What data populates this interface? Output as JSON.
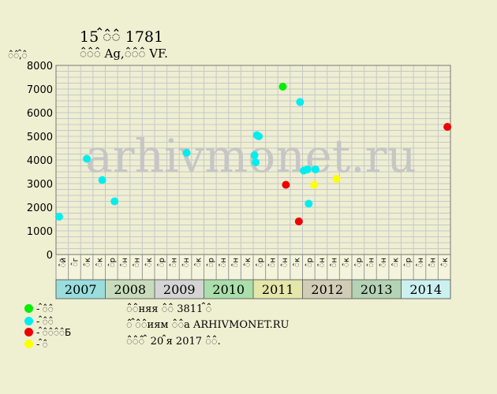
{
  "header": {
    "title_line1": "15 ꠆꠆꠆ 1781",
    "title_line2": "꠆꠆꠆ Ag,꠆꠆꠆ VF.",
    "y_unit": "꠆꠆,꠆꠆"
  },
  "watermark": "arhivmonet.ru",
  "legend": [
    {
      "label": "- ꠆꠆꠆",
      "color": "#00ee00"
    },
    {
      "label": "- ꠆꠆꠆",
      "color": "#00eeee"
    },
    {
      "label": "- ꠆꠆꠆꠆꠆Б",
      "color": "#ee0000"
    },
    {
      "label": "- ꠆꠆",
      "color": "#ffff00"
    }
  ],
  "info": {
    "line1": "꠆꠆няя ꠆꠆ 3811 ꠆꠆",
    "line2": "꠆ ꠆꠆꠆иям ꠆꠆а ARHIVMONET.RU",
    "line3": "꠆꠆꠆ ꠆ 20 ꠆я 2017 ꠆꠆."
  },
  "chart_data": {
    "type": "scatter",
    "ylim": [
      0,
      8000
    ],
    "yticks": [
      0,
      1000,
      2000,
      3000,
      4000,
      5000,
      6000,
      7000,
      8000
    ],
    "x_axis": "quarters 2007-2014",
    "quarter_labels": [
      "꠆й",
      "꠆г",
      "꠆к",
      "꠆к",
      "꠆р",
      "꠆н",
      "꠆н",
      "꠆к",
      "꠆р",
      "꠆н",
      "꠆н",
      "꠆к",
      "꠆р",
      "꠆н",
      "꠆н",
      "꠆к",
      "꠆р",
      "꠆н",
      "꠆н",
      "꠆к",
      "꠆р",
      "꠆н",
      "꠆н",
      "꠆к",
      "꠆р",
      "꠆н",
      "꠆н",
      "꠆к",
      "꠆р",
      "꠆н",
      "꠆н",
      "꠆к"
    ],
    "years": [
      {
        "label": "2007",
        "color": "#99dddd"
      },
      {
        "label": "2008",
        "color": "#c8dcbc"
      },
      {
        "label": "2009",
        "color": "#d4d4d4"
      },
      {
        "label": "2010",
        "color": "#aadeaa"
      },
      {
        "label": "2011",
        "color": "#e4e6aa"
      },
      {
        "label": "2012",
        "color": "#d2ccb6"
      },
      {
        "label": "2013",
        "color": "#b4d2b4"
      },
      {
        "label": "2014",
        "color": "#ccf0f0"
      }
    ],
    "series": [
      {
        "color": "#00ee00",
        "points": [
          {
            "q": 18.4,
            "v": 7100
          }
        ]
      },
      {
        "color": "#00eeee",
        "points": [
          {
            "q": 0.25,
            "v": 1600
          },
          {
            "q": 2.5,
            "v": 4050
          },
          {
            "q": 3.75,
            "v": 3150
          },
          {
            "q": 4.75,
            "v": 2250
          },
          {
            "q": 10.6,
            "v": 4300
          },
          {
            "q": 16.1,
            "v": 4200
          },
          {
            "q": 16.2,
            "v": 3900
          },
          {
            "q": 16.3,
            "v": 5050
          },
          {
            "q": 16.45,
            "v": 5000
          },
          {
            "q": 19.8,
            "v": 6450
          },
          {
            "q": 20.1,
            "v": 3550
          },
          {
            "q": 20.4,
            "v": 3600
          },
          {
            "q": 20.5,
            "v": 2150
          },
          {
            "q": 21.05,
            "v": 3600
          }
        ]
      },
      {
        "color": "#ee0000",
        "points": [
          {
            "q": 18.65,
            "v": 2950
          },
          {
            "q": 19.7,
            "v": 1400
          },
          {
            "q": 31.75,
            "v": 5400
          }
        ]
      },
      {
        "color": "#ffff00",
        "points": [
          {
            "q": 20.95,
            "v": 2950
          },
          {
            "q": 22.75,
            "v": 3200
          }
        ]
      }
    ]
  }
}
